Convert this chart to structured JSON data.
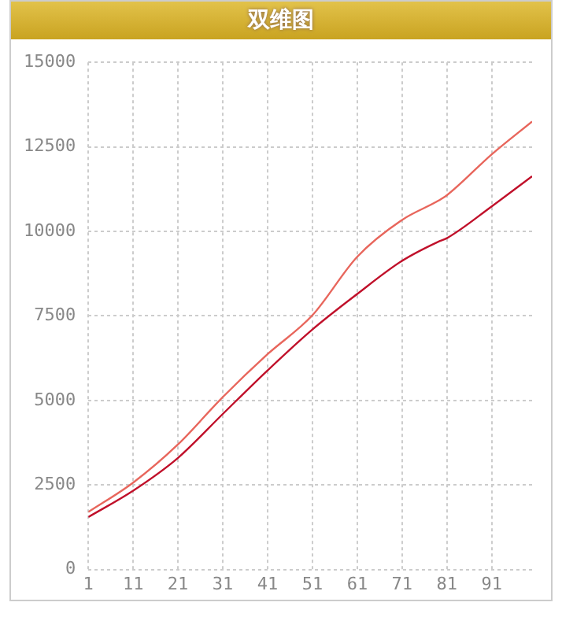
{
  "chart_data": {
    "type": "line",
    "title": "双维图",
    "xlim": [
      1,
      100
    ],
    "xticks": [
      1,
      11,
      21,
      31,
      41,
      51,
      61,
      71,
      81,
      91
    ],
    "ylim": [
      0,
      15000
    ],
    "yticks": [
      0,
      2500,
      5000,
      7500,
      10000,
      12500,
      15000
    ],
    "grid": true,
    "legend": false,
    "marker": "none",
    "line_style": "solid",
    "series": [
      {
        "color": "#e8665c",
        "x": [
          1,
          11,
          21,
          31,
          41,
          51,
          61,
          71,
          79,
          81,
          91,
          100
        ],
        "values": [
          1700,
          2570,
          3700,
          5100,
          6370,
          7520,
          9250,
          10340,
          10900,
          11070,
          12280,
          13250
        ]
      },
      {
        "color": "#c0102a",
        "x": [
          1,
          11,
          21,
          31,
          41,
          51,
          61,
          71,
          79,
          81,
          91,
          100
        ],
        "values": [
          1550,
          2330,
          3300,
          4600,
          5890,
          7100,
          8150,
          9130,
          9690,
          9800,
          10740,
          11630
        ]
      }
    ]
  }
}
